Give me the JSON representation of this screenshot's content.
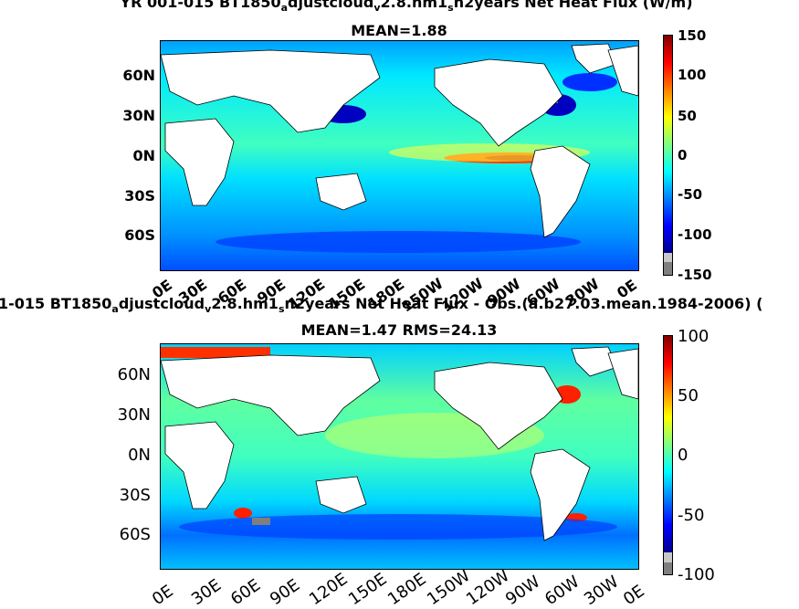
{
  "chart_data": [
    {
      "type": "heatmap",
      "title_pre": "YR 001-015 BT1850",
      "title_sub1": "a",
      "title_mid": "djustcloud",
      "title_sub2": "v",
      "title_mid2": "2.8.hm1",
      "title_sub3": "s",
      "title_post": "n2years  Net Heat Flux (W/m",
      "title_end": ")",
      "subtitle": "MEAN=1.88",
      "yticks": [
        "60N",
        "30N",
        "0N",
        "30S",
        "60S"
      ],
      "xticks": [
        "0E",
        "30E",
        "60E",
        "90E",
        "120E",
        "150E",
        "180E",
        "150W",
        "120W",
        "90W",
        "60W",
        "30W",
        "0E"
      ],
      "colorbar": {
        "ticks": [
          "150",
          "100",
          "50",
          "0",
          "-50",
          "-100",
          "-150"
        ],
        "range": [
          -150,
          150
        ]
      }
    },
    {
      "type": "heatmap",
      "title_pre": "1-015 BT1850",
      "title_sub1": "a",
      "title_mid": "djustcloud",
      "title_sub2": "v",
      "title_mid2": "2.8.hm1",
      "title_sub3": "s",
      "title_post": "n2years  Net Heat Flux - Obs.(a.b27.03.mean.1984-2006) (",
      "subtitle": "MEAN=1.47 RMS=24.13",
      "yticks": [
        "60N",
        "30N",
        "0N",
        "30S",
        "60S"
      ],
      "xticks": [
        "0E",
        "30E",
        "60E",
        "90E",
        "120E",
        "150E",
        "180E",
        "150W",
        "120W",
        "90W",
        "60W",
        "30W",
        "0E"
      ],
      "colorbar": {
        "ticks": [
          "100",
          "50",
          "0",
          "-50",
          "-100"
        ],
        "range": [
          -100,
          100
        ]
      }
    }
  ],
  "colors": {
    "colormap": [
      "#00008f",
      "#0000ff",
      "#0080ff",
      "#00ffff",
      "#80ff80",
      "#ffff00",
      "#ff8000",
      "#ff0000",
      "#800000"
    ],
    "land": "#ffffff",
    "missing": "#7f7f7f"
  }
}
